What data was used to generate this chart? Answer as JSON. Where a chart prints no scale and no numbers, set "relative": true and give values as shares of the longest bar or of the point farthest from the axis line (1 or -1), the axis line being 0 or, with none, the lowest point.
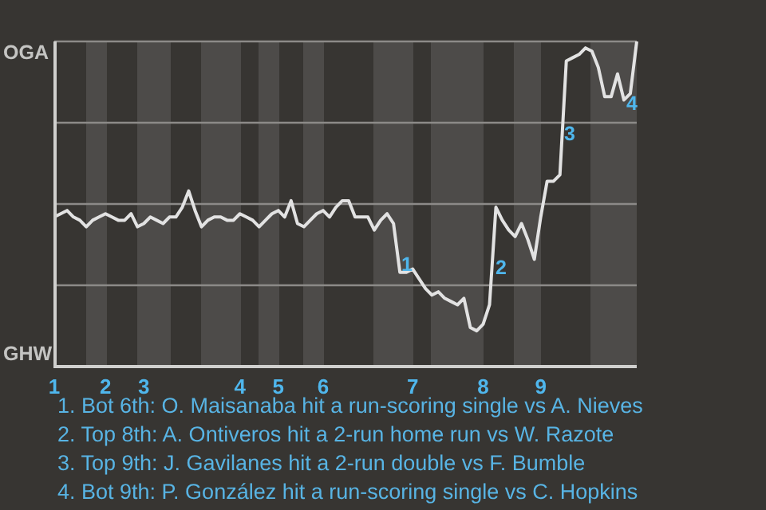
{
  "chart_data": {
    "type": "line",
    "relative": true,
    "categories": [
      "1",
      null,
      null,
      null,
      null,
      null,
      null,
      null,
      "2",
      null,
      null,
      null,
      null,
      null,
      "3",
      null,
      null,
      null,
      null,
      null,
      null,
      null,
      null,
      null,
      null,
      null,
      null,
      null,
      null,
      "4",
      null,
      null,
      null,
      null,
      null,
      "5",
      null,
      null,
      null,
      null,
      null,
      null,
      "6",
      null,
      null,
      null,
      null,
      null,
      null,
      null,
      null,
      null,
      null,
      null,
      null,
      null,
      "7",
      null,
      null,
      null,
      null,
      null,
      null,
      null,
      null,
      null,
      null,
      "8",
      null,
      null,
      null,
      null,
      null,
      null,
      null,
      null,
      "9",
      null,
      null,
      null,
      null,
      null,
      null,
      null,
      null,
      null,
      null,
      null,
      null,
      null,
      null,
      null
    ],
    "series": [
      {
        "color": "#e2e2e2",
        "values": [
          0.46,
          0.47,
          0.48,
          0.46,
          0.45,
          0.43,
          0.45,
          0.46,
          0.47,
          0.46,
          0.45,
          0.45,
          0.47,
          0.43,
          0.44,
          0.46,
          0.45,
          0.44,
          0.46,
          0.46,
          0.49,
          0.54,
          0.48,
          0.43,
          0.45,
          0.46,
          0.46,
          0.45,
          0.45,
          0.47,
          0.46,
          0.45,
          0.43,
          0.45,
          0.47,
          0.48,
          0.46,
          0.51,
          0.44,
          0.43,
          0.45,
          0.47,
          0.48,
          0.46,
          0.49,
          0.51,
          0.51,
          0.46,
          0.46,
          0.46,
          0.42,
          0.45,
          0.47,
          0.44,
          0.29,
          0.29,
          0.3,
          0.27,
          0.24,
          0.22,
          0.23,
          0.21,
          0.2,
          0.19,
          0.21,
          0.12,
          0.11,
          0.13,
          0.19,
          0.49,
          0.45,
          0.42,
          0.4,
          0.44,
          0.39,
          0.33,
          0.46,
          0.57,
          0.57,
          0.59,
          0.94,
          0.95,
          0.96,
          0.98,
          0.97,
          0.92,
          0.83,
          0.83,
          0.9,
          0.82,
          0.84,
          1
        ]
      }
    ],
    "grid": "y",
    "marker": "none",
    "line_style": "solid",
    "annotations": [
      "OGA",
      "GHW",
      "1",
      "2",
      "3",
      "4",
      "1. Bot 6th: O. Maisanaba hit a run-scoring single vs A. Nieves",
      "2. Top 8th: A. Ontiveros hit a 2-run home run vs W. Razote",
      "3. Top 9th: J. Gavilanes hit a 2-run double vs F. Bumble",
      "4. Bot 9th: P. González hit a run-scoring single vs C. Hopkins"
    ]
  }
}
